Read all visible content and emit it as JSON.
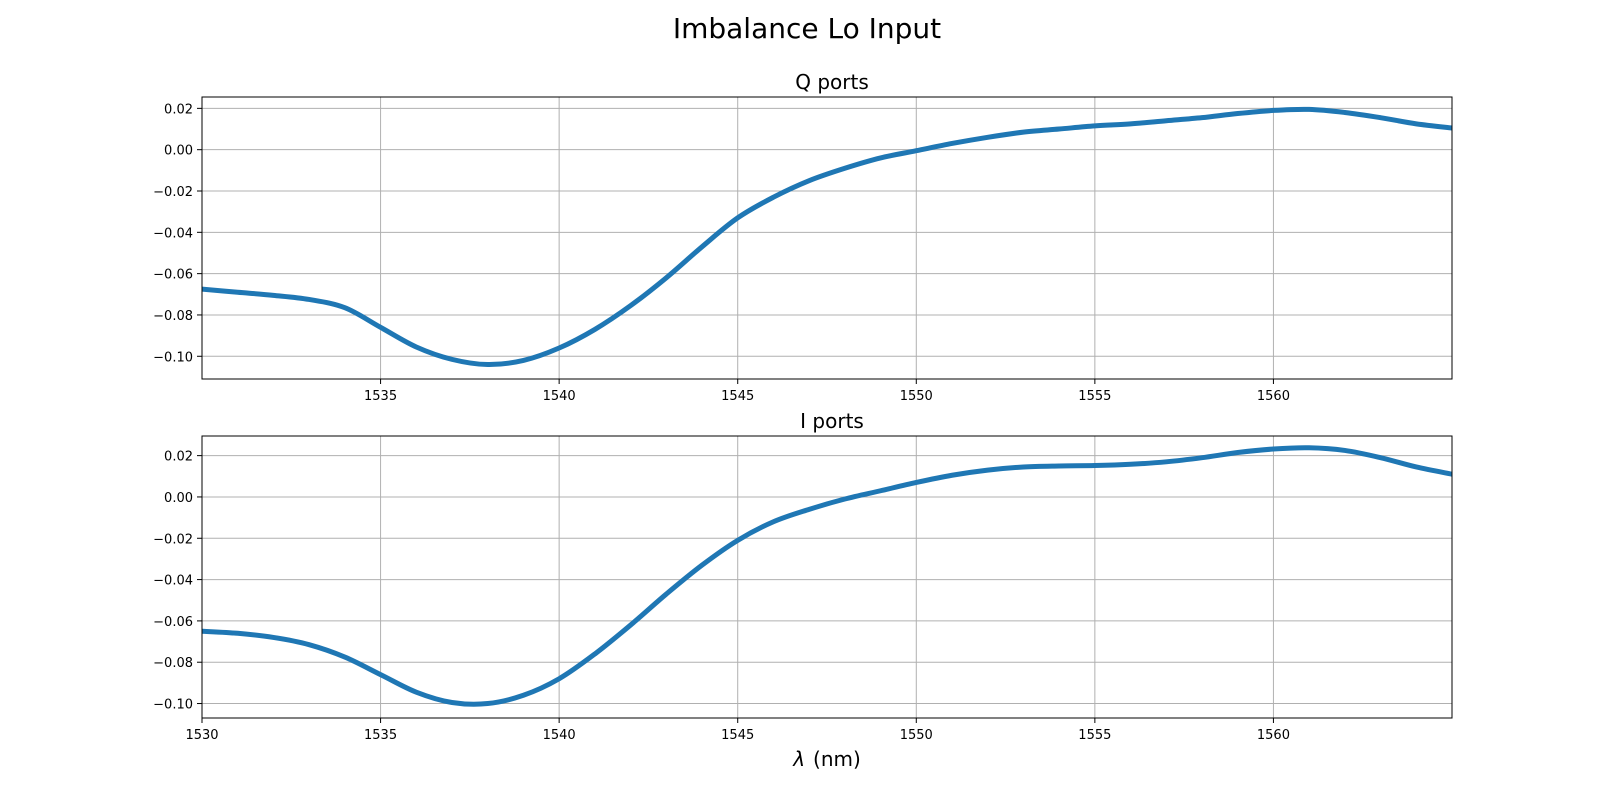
{
  "figure": {
    "suptitle": "Imbalance Lo Input",
    "xlabel": "(nm)",
    "xlabel_symbol": "λ"
  },
  "chart_data": [
    {
      "type": "line",
      "title": "Q ports",
      "xlabel": "",
      "ylabel": "",
      "xlim": [
        1530,
        1565
      ],
      "ylim": [
        -0.111,
        0.0255
      ],
      "xticks": [
        1535,
        1540,
        1545,
        1550,
        1555,
        1560
      ],
      "xtick_labels": [
        "1535",
        "1540",
        "1545",
        "1550",
        "1555",
        "1560"
      ],
      "show_xtick_labels": true,
      "yticks": [
        0.02,
        0.0,
        -0.02,
        -0.04,
        -0.06,
        -0.08,
        -0.1
      ],
      "ytick_labels": [
        "0.02",
        "0.00",
        "−0.02",
        "−0.04",
        "−0.06",
        "−0.08",
        "−0.10"
      ],
      "grid": true,
      "series": [
        {
          "color": "#1f77b4",
          "x": [
            1530,
            1531,
            1532,
            1533,
            1534,
            1535,
            1536,
            1537,
            1538,
            1539,
            1540,
            1541,
            1542,
            1543,
            1544,
            1545,
            1546,
            1547,
            1548,
            1549,
            1550,
            1551,
            1552,
            1553,
            1554,
            1555,
            1556,
            1557,
            1558,
            1559,
            1560,
            1561,
            1562,
            1563,
            1564,
            1565
          ],
          "y": [
            -0.0675,
            -0.069,
            -0.0705,
            -0.0725,
            -0.0765,
            -0.086,
            -0.0955,
            -0.1015,
            -0.104,
            -0.102,
            -0.096,
            -0.087,
            -0.0755,
            -0.062,
            -0.047,
            -0.033,
            -0.023,
            -0.015,
            -0.009,
            -0.004,
            -0.0005,
            0.003,
            0.006,
            0.0085,
            0.01,
            0.0115,
            0.0125,
            0.014,
            0.0155,
            0.0175,
            0.019,
            0.0195,
            0.018,
            0.0155,
            0.0125,
            0.0105
          ]
        }
      ]
    },
    {
      "type": "line",
      "title": "I ports",
      "xlabel": "λ (nm)",
      "ylabel": "",
      "xlim": [
        1530,
        1565
      ],
      "ylim": [
        -0.107,
        0.0295
      ],
      "xticks": [
        1530,
        1535,
        1540,
        1545,
        1550,
        1555,
        1560
      ],
      "xtick_labels": [
        "1530",
        "1535",
        "1540",
        "1545",
        "1550",
        "1555",
        "1560"
      ],
      "show_xtick_labels": true,
      "yticks": [
        0.02,
        0.0,
        -0.02,
        -0.04,
        -0.06,
        -0.08,
        -0.1
      ],
      "ytick_labels": [
        "0.02",
        "0.00",
        "−0.02",
        "−0.04",
        "−0.06",
        "−0.08",
        "−0.10"
      ],
      "grid": true,
      "series": [
        {
          "color": "#1f77b4",
          "x": [
            1530,
            1531,
            1532,
            1533,
            1534,
            1535,
            1536,
            1537,
            1538,
            1539,
            1540,
            1541,
            1542,
            1543,
            1544,
            1545,
            1546,
            1547,
            1548,
            1549,
            1550,
            1551,
            1552,
            1553,
            1554,
            1555,
            1556,
            1557,
            1558,
            1559,
            1560,
            1561,
            1562,
            1563,
            1564,
            1565
          ],
          "y": [
            -0.065,
            -0.066,
            -0.068,
            -0.0715,
            -0.0775,
            -0.086,
            -0.0945,
            -0.0995,
            -0.1,
            -0.096,
            -0.088,
            -0.076,
            -0.062,
            -0.047,
            -0.033,
            -0.021,
            -0.012,
            -0.006,
            -0.001,
            0.003,
            0.007,
            0.0105,
            0.013,
            0.0145,
            0.015,
            0.0152,
            0.0158,
            0.017,
            0.019,
            0.0215,
            0.0232,
            0.0238,
            0.0225,
            0.019,
            0.0145,
            0.011
          ]
        }
      ]
    }
  ]
}
